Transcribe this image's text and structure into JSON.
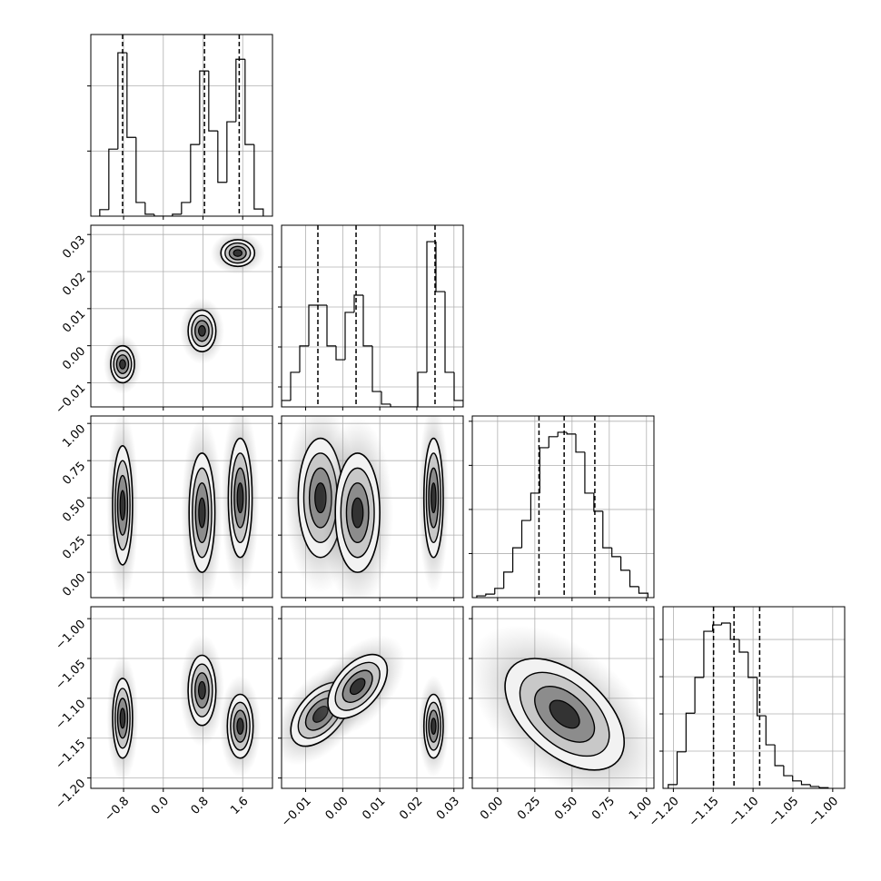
{
  "chart_data": {
    "type": "corner",
    "params": [
      {
        "lim": [
          -1.46,
          2.2
        ],
        "ticks": [
          {
            "value": -0.8,
            "label": "−0.8"
          },
          {
            "value": 0,
            "label": "0.0"
          },
          {
            "value": 0.8,
            "label": "0.8"
          },
          {
            "value": 1.6,
            "label": "1.6"
          }
        ]
      },
      {
        "lim": [
          -0.0165,
          0.0325
        ],
        "ticks": [
          {
            "value": -0.01,
            "label": "−0.01"
          },
          {
            "value": 0,
            "label": "0.00"
          },
          {
            "value": 0.01,
            "label": "0.01"
          },
          {
            "value": 0.02,
            "label": "0.02"
          },
          {
            "value": 0.03,
            "label": "0.03"
          }
        ]
      },
      {
        "lim": [
          -0.17,
          1.05
        ],
        "ticks": [
          {
            "value": 0,
            "label": "0.00"
          },
          {
            "value": 0.25,
            "label": "0.25"
          },
          {
            "value": 0.5,
            "label": "0.50"
          },
          {
            "value": 0.75,
            "label": "0.75"
          },
          {
            "value": 1,
            "label": "1.00"
          }
        ]
      },
      {
        "lim": [
          -1.213,
          -0.985
        ],
        "ticks": [
          {
            "value": -1.2,
            "label": "−1.20"
          },
          {
            "value": -1.15,
            "label": "−1.15"
          },
          {
            "value": -1.1,
            "label": "−1.10"
          },
          {
            "value": -1.05,
            "label": "−1.05"
          },
          {
            "value": -1,
            "label": "−1.00"
          }
        ]
      }
    ],
    "histograms": [
      {
        "bins": [
          -1.28,
          -1.097,
          -0.914,
          -0.731,
          -0.548,
          -0.365,
          -0.182,
          0.001,
          0.184,
          0.367,
          0.55,
          0.733,
          0.916,
          1.099,
          1.282,
          1.465,
          1.648,
          1.831,
          2.014
        ],
        "counts": [
          0.1,
          1.03,
          2.51,
          1.21,
          0.21,
          0.03,
          0,
          0,
          0.03,
          0.21,
          1.1,
          2.23,
          1.31,
          0.52,
          1.45,
          2.41,
          1.1,
          0.11
        ],
        "quantiles": [
          -0.82,
          0.83,
          1.53
        ],
        "ylim": [
          0,
          2.79
        ],
        "yticks": [
          1,
          2
        ],
        "ytick_labels": false
      },
      {
        "bins": [
          -0.0165,
          -0.01405,
          -0.0116,
          -0.00915,
          -0.0067,
          -0.00425,
          -0.0018,
          0.00065,
          0.0031,
          0.00555,
          0.008,
          0.01045,
          0.0129,
          0.01535,
          0.0178,
          0.02025,
          0.0227,
          0.02515,
          0.0276,
          0.03005,
          0.0325
        ],
        "counts": [
          0.32,
          1.73,
          3.05,
          5.09,
          5.09,
          3.05,
          2.36,
          4.73,
          5.59,
          3.05,
          0.77,
          0.14,
          0,
          0,
          0,
          1.73,
          8.27,
          5.77,
          1.73,
          0.32
        ],
        "quantiles": [
          -0.0067,
          0.0036,
          0.0249
        ],
        "ylim": [
          0,
          9.09
        ],
        "yticks": [
          1,
          3,
          5,
          7
        ],
        "ytick_labels": false
      },
      {
        "bins": [
          -0.14,
          -0.0795,
          -0.019,
          0.0415,
          0.102,
          0.1625,
          0.223,
          0.2835,
          0.344,
          0.4045,
          0.465,
          0.5255,
          0.586,
          0.6465,
          0.707,
          0.7675,
          0.828,
          0.8885,
          0.949,
          1.0095
        ],
        "counts": [
          0.04,
          0.08,
          0.21,
          0.58,
          1.13,
          1.75,
          2.37,
          3.4,
          3.65,
          3.75,
          3.71,
          3.3,
          2.37,
          1.96,
          1.13,
          0.93,
          0.62,
          0.25,
          0.1
        ],
        "quantiles": [
          0.278,
          0.447,
          0.653
        ],
        "ylim": [
          0,
          4.12
        ],
        "yticks": [
          1,
          2,
          3,
          4
        ],
        "ytick_labels": false
      },
      {
        "bins": [
          -1.2064,
          -1.1953,
          -1.1841,
          -1.173,
          -1.1618,
          -1.1507,
          -1.1395,
          -1.1284,
          -1.1172,
          -1.1061,
          -1.0949,
          -1.0838,
          -1.0726,
          -1.0615,
          -1.0503,
          -1.0392,
          -1.028,
          -1.0169,
          -1.0057
        ],
        "counts": [
          0.1,
          0.98,
          2.02,
          2.98,
          4.22,
          4.39,
          4.44,
          4.0,
          3.66,
          2.98,
          1.95,
          1.17,
          0.61,
          0.34,
          0.2,
          0.1,
          0.05,
          0.02
        ],
        "quantiles": [
          -1.1496,
          -1.1239,
          -1.0917
        ],
        "ylim": [
          0,
          4.88
        ],
        "yticks": [
          1,
          2,
          3,
          4
        ],
        "ytick_labels": false
      }
    ],
    "pairs": [
      [
        {
          "clusters": [
            {
              "x": -0.82,
              "y": -0.005,
              "sx": 0.12,
              "sy": 0.0025,
              "rho": 0
            },
            {
              "x": 0.78,
              "y": 0.004,
              "sx": 0.14,
              "sy": 0.0028,
              "rho": 0
            },
            {
              "x": 1.5,
              "y": 0.025,
              "sx": 0.17,
              "sy": 0.0018,
              "rho": 0
            }
          ]
        }
      ],
      [
        {
          "clusters": [
            {
              "x": -0.82,
              "y": 0.45,
              "sx": 0.1,
              "sy": 0.2,
              "rho": 0
            },
            {
              "x": 0.78,
              "y": 0.4,
              "sx": 0.13,
              "sy": 0.2,
              "rho": 0
            },
            {
              "x": 1.55,
              "y": 0.5,
              "sx": 0.12,
              "sy": 0.2,
              "rho": 0
            }
          ]
        },
        {
          "clusters": [
            {
              "x": -0.006,
              "y": 0.5,
              "sx": 0.003,
              "sy": 0.2,
              "rho": 0
            },
            {
              "x": 0.004,
              "y": 0.4,
              "sx": 0.003,
              "sy": 0.2,
              "rho": 0
            },
            {
              "x": 0.0245,
              "y": 0.5,
              "sx": 0.0013,
              "sy": 0.2,
              "rho": 0
            }
          ]
        }
      ],
      [
        {
          "clusters": [
            {
              "x": -0.82,
              "y": -1.125,
              "sx": 0.1,
              "sy": 0.025,
              "rho": 0
            },
            {
              "x": 0.78,
              "y": -1.09,
              "sx": 0.14,
              "sy": 0.022,
              "rho": 0
            },
            {
              "x": 1.55,
              "y": -1.135,
              "sx": 0.13,
              "sy": 0.02,
              "rho": 0
            }
          ]
        },
        {
          "clusters": [
            {
              "x": -0.006,
              "y": -1.12,
              "sx": 0.004,
              "sy": 0.02,
              "rho": 0.5
            },
            {
              "x": 0.004,
              "y": -1.085,
              "sx": 0.004,
              "sy": 0.02,
              "rho": 0.5
            },
            {
              "x": 0.0245,
              "y": -1.135,
              "sx": 0.0013,
              "sy": 0.02,
              "rho": 0
            }
          ]
        },
        {
          "clusters": [
            {
              "x": 0.45,
              "y": -1.12,
              "sx": 0.2,
              "sy": 0.035,
              "rho": -0.5
            }
          ]
        }
      ]
    ]
  }
}
